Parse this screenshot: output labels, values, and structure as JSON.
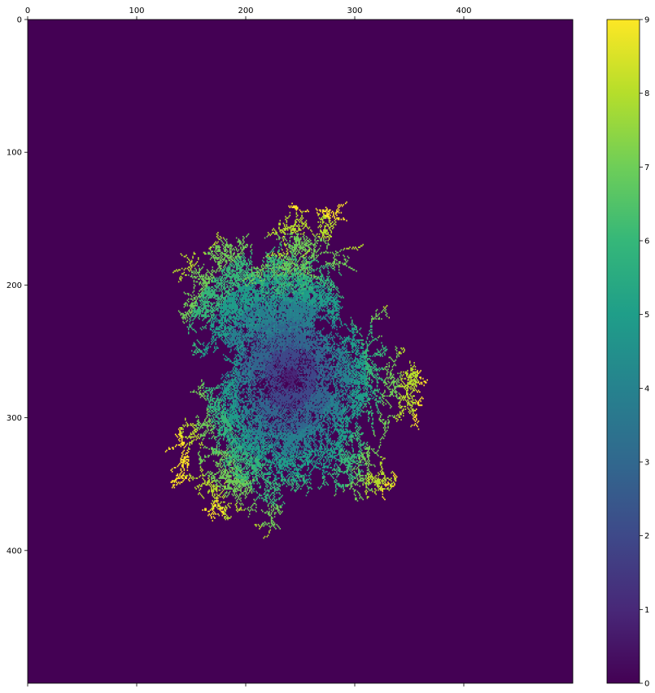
{
  "chart_data": {
    "type": "heatmap",
    "title": "",
    "xlabel": "",
    "ylabel": "",
    "xlim": [
      0,
      500
    ],
    "ylim": [
      500,
      0
    ],
    "x_ticks": [
      0,
      100,
      200,
      300,
      400
    ],
    "y_ticks": [
      0,
      100,
      200,
      300,
      400
    ],
    "colormap": "viridis",
    "background_value": 0,
    "colorbar": {
      "vmin": 0,
      "vmax": 9,
      "ticks": [
        0,
        1,
        2,
        3,
        4,
        5,
        6,
        7,
        8,
        9
      ]
    },
    "cluster": {
      "shape": "diffusion-limited aggregation dendrite",
      "center": [
        240,
        270
      ],
      "value_range": [
        1,
        9
      ],
      "branches": [
        {
          "angle": -115,
          "length": 150,
          "tip_value": 9
        },
        {
          "angle": -75,
          "length": 150,
          "tip_value": 9
        },
        {
          "angle": -20,
          "length": 135,
          "tip_value": 9
        },
        {
          "angle": 10,
          "length": 125,
          "tip_value": 9
        },
        {
          "angle": 35,
          "length": 110,
          "tip_value": 8
        },
        {
          "angle": 72,
          "length": 140,
          "tip_value": 9
        },
        {
          "angle": 110,
          "length": 105,
          "tip_value": 8
        },
        {
          "angle": 160,
          "length": 130,
          "tip_value": 9
        },
        {
          "angle": -165,
          "length": 115,
          "tip_value": 9
        },
        {
          "angle": -140,
          "length": 100,
          "tip_value": 8
        }
      ]
    }
  },
  "colors": {
    "viridis": [
      "#440154",
      "#482878",
      "#3e4989",
      "#31688e",
      "#26828e",
      "#1f9e89",
      "#35b779",
      "#6ece58",
      "#b5de2b",
      "#fde725"
    ]
  }
}
